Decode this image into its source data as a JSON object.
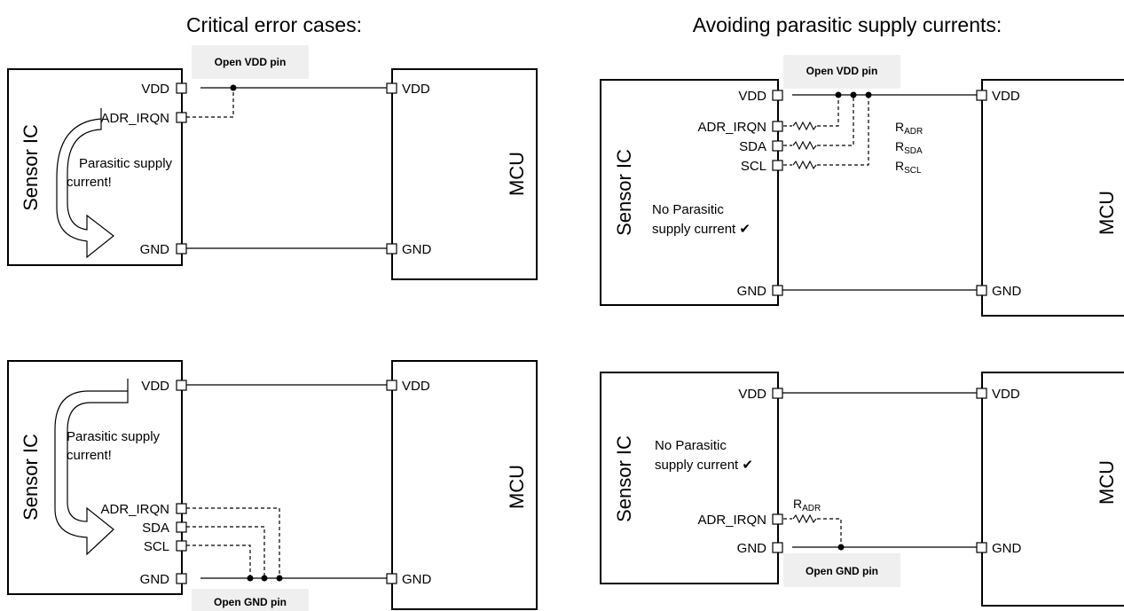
{
  "headings": {
    "left": "Critical error cases:",
    "right": "Avoiding parasitic supply currents:"
  },
  "chips": {
    "sensor": "Sensor IC",
    "mcu": "MCU"
  },
  "pins": {
    "vdd": "VDD",
    "gnd": "GND",
    "adr_irqn": "ADR_IRQN",
    "sda": "SDA",
    "scl": "SCL"
  },
  "notes": {
    "parasitic_line1": "Parasitic supply",
    "parasitic_line2": "current!",
    "no_parasitic_line1": "No Parasitic",
    "no_parasitic_line2": "supply current ✔"
  },
  "tags": {
    "open_vdd": "Open VDD pin",
    "open_gnd": "Open GND pin"
  },
  "resistors": {
    "r": "R",
    "adr": "ADR",
    "sda": "SDA",
    "scl": "SCL"
  }
}
